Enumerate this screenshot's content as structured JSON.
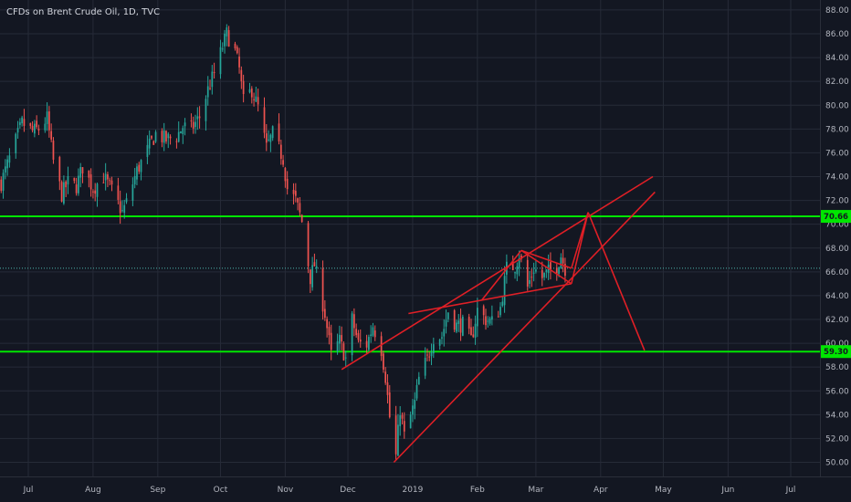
{
  "chart_data": {
    "type": "candlestick",
    "title": "CFDs on Brent Crude Oil, 1D, TVC",
    "y_ticks": [
      "88.00",
      "86.00",
      "84.00",
      "82.00",
      "80.00",
      "78.00",
      "76.00",
      "74.00",
      "72.00",
      "70.00",
      "68.00",
      "66.00",
      "64.00",
      "62.00",
      "60.00",
      "58.00",
      "56.00",
      "54.00",
      "52.00",
      "50.00"
    ],
    "y_tick_values": [
      88,
      86,
      84,
      82,
      80,
      78,
      76,
      74,
      72,
      70,
      68,
      66,
      64,
      62,
      60,
      58,
      56,
      54,
      52,
      50
    ],
    "ylim": [
      49.3,
      88.6
    ],
    "x_ticks": [
      "Jul",
      "Aug",
      "Sep",
      "Oct",
      "Nov",
      "Dec",
      "2019",
      "Feb",
      "Mar",
      "Apr",
      "May",
      "Jun",
      "Jul"
    ],
    "x_tick_dates": [
      "2018-07-01",
      "2018-08-01",
      "2018-09-01",
      "2018-10-01",
      "2018-11-01",
      "2018-12-01",
      "2019-01-01",
      "2019-02-01",
      "2019-03-01",
      "2019-04-01",
      "2019-05-01",
      "2019-06-01",
      "2019-07-01"
    ],
    "xlim": [
      "2018-06-17",
      "2019-07-17"
    ],
    "horizontal_levels": [
      {
        "price": 70.66,
        "label": "70.66",
        "color": "#00e600"
      },
      {
        "price": 59.3,
        "label": "59.30",
        "color": "#00e600"
      }
    ],
    "current_price_line": {
      "price": 66.3,
      "color": "#4db6ac"
    },
    "annotation_color": "#e01f26",
    "up_color": "#26a69a",
    "down_color": "#ef5350",
    "annotations": [
      {
        "name": "lower-channel-line",
        "points": [
          [
            "2018-12-23",
            50.0
          ],
          [
            "2019-04-27",
            72.7
          ]
        ]
      },
      {
        "name": "upper-channel-line",
        "points": [
          [
            "2018-11-28",
            57.8
          ],
          [
            "2019-04-26",
            74.0
          ]
        ]
      },
      {
        "name": "wedge-lower-line",
        "points": [
          [
            "2018-12-30",
            62.5
          ],
          [
            "2019-03-18",
            65.0
          ]
        ]
      },
      {
        "name": "wedge-upper-line",
        "points": [
          [
            "2019-02-22",
            67.8
          ],
          [
            "2019-03-18",
            66.3
          ]
        ]
      },
      {
        "name": "wedge-cross-line",
        "points": [
          [
            "2019-02-03",
            63.6
          ],
          [
            "2019-02-22",
            67.8
          ]
        ]
      },
      {
        "name": "wedge-cross-line-2",
        "points": [
          [
            "2019-02-22",
            67.8
          ],
          [
            "2019-03-18",
            65.0
          ]
        ]
      },
      {
        "name": "projection-up",
        "points": [
          [
            "2019-03-18",
            65.0
          ],
          [
            "2019-03-26",
            71.0
          ]
        ]
      },
      {
        "name": "projection-up-2",
        "points": [
          [
            "2019-03-18",
            66.3
          ],
          [
            "2019-03-26",
            71.0
          ]
        ]
      },
      {
        "name": "projection-down",
        "points": [
          [
            "2019-03-26",
            71.0
          ],
          [
            "2019-04-22",
            59.4
          ]
        ]
      }
    ],
    "price_path": [
      [
        "2018-06-18",
        73.5
      ],
      [
        "2018-06-22",
        75.5
      ],
      [
        "2018-06-28",
        78.5
      ],
      [
        "2018-07-03",
        77.8
      ],
      [
        "2018-07-06",
        78.0
      ],
      [
        "2018-07-10",
        78.9
      ],
      [
        "2018-07-13",
        75.3
      ],
      [
        "2018-07-17",
        72.5
      ],
      [
        "2018-07-20",
        73.5
      ],
      [
        "2018-07-24",
        73.2
      ],
      [
        "2018-07-27",
        74.8
      ],
      [
        "2018-08-01",
        73.0
      ],
      [
        "2018-08-06",
        74.0
      ],
      [
        "2018-08-10",
        72.8
      ],
      [
        "2018-08-15",
        71.0
      ],
      [
        "2018-08-17",
        71.8
      ],
      [
        "2018-08-22",
        74.5
      ],
      [
        "2018-08-27",
        76.2
      ],
      [
        "2018-08-31",
        77.6
      ],
      [
        "2018-09-05",
        77.1
      ],
      [
        "2018-09-10",
        77.4
      ],
      [
        "2018-09-13",
        78.2
      ],
      [
        "2018-09-17",
        78.0
      ],
      [
        "2018-09-21",
        79.0
      ],
      [
        "2018-09-25",
        81.3
      ],
      [
        "2018-09-28",
        82.7
      ],
      [
        "2018-10-02",
        84.9
      ],
      [
        "2018-10-04",
        86.0
      ],
      [
        "2018-10-08",
        84.5
      ],
      [
        "2018-10-10",
        83.0
      ],
      [
        "2018-10-12",
        80.3
      ],
      [
        "2018-10-16",
        81.3
      ],
      [
        "2018-10-19",
        79.8
      ],
      [
        "2018-10-23",
        76.4
      ],
      [
        "2018-10-26",
        77.6
      ],
      [
        "2018-10-31",
        75.5
      ],
      [
        "2018-11-02",
        73.0
      ],
      [
        "2018-11-06",
        72.0
      ],
      [
        "2018-11-09",
        70.2
      ],
      [
        "2018-11-13",
        65.5
      ],
      [
        "2018-11-15",
        66.6
      ],
      [
        "2018-11-20",
        62.5
      ],
      [
        "2018-11-23",
        59.0
      ],
      [
        "2018-11-27",
        60.2
      ],
      [
        "2018-11-30",
        58.7
      ],
      [
        "2018-12-03",
        62.0
      ],
      [
        "2018-12-06",
        60.0
      ],
      [
        "2018-12-10",
        59.9
      ],
      [
        "2018-12-13",
        61.5
      ],
      [
        "2018-12-17",
        59.5
      ],
      [
        "2018-12-19",
        57.2
      ],
      [
        "2018-12-21",
        53.8
      ],
      [
        "2018-12-24",
        50.5
      ],
      [
        "2018-12-26",
        54.5
      ],
      [
        "2018-12-28",
        52.2
      ],
      [
        "2019-01-02",
        55.0
      ],
      [
        "2019-01-04",
        57.0
      ],
      [
        "2019-01-08",
        58.7
      ],
      [
        "2019-01-11",
        60.5
      ],
      [
        "2019-01-15",
        60.6
      ],
      [
        "2019-01-18",
        62.7
      ],
      [
        "2019-01-22",
        61.5
      ],
      [
        "2019-01-25",
        61.6
      ],
      [
        "2019-01-29",
        60.2
      ],
      [
        "2019-02-01",
        62.8
      ],
      [
        "2019-02-05",
        62.0
      ],
      [
        "2019-02-08",
        61.8
      ],
      [
        "2019-02-12",
        63.0
      ],
      [
        "2019-02-15",
        66.3
      ],
      [
        "2019-02-19",
        66.5
      ],
      [
        "2019-02-21",
        67.5
      ],
      [
        "2019-02-25",
        64.7
      ],
      [
        "2019-02-28",
        66.3
      ],
      [
        "2019-03-04",
        65.5
      ],
      [
        "2019-03-07",
        66.0
      ],
      [
        "2019-03-11",
        66.5
      ],
      [
        "2019-03-13",
        67.4
      ],
      [
        "2019-03-15",
        66.3
      ]
    ]
  }
}
